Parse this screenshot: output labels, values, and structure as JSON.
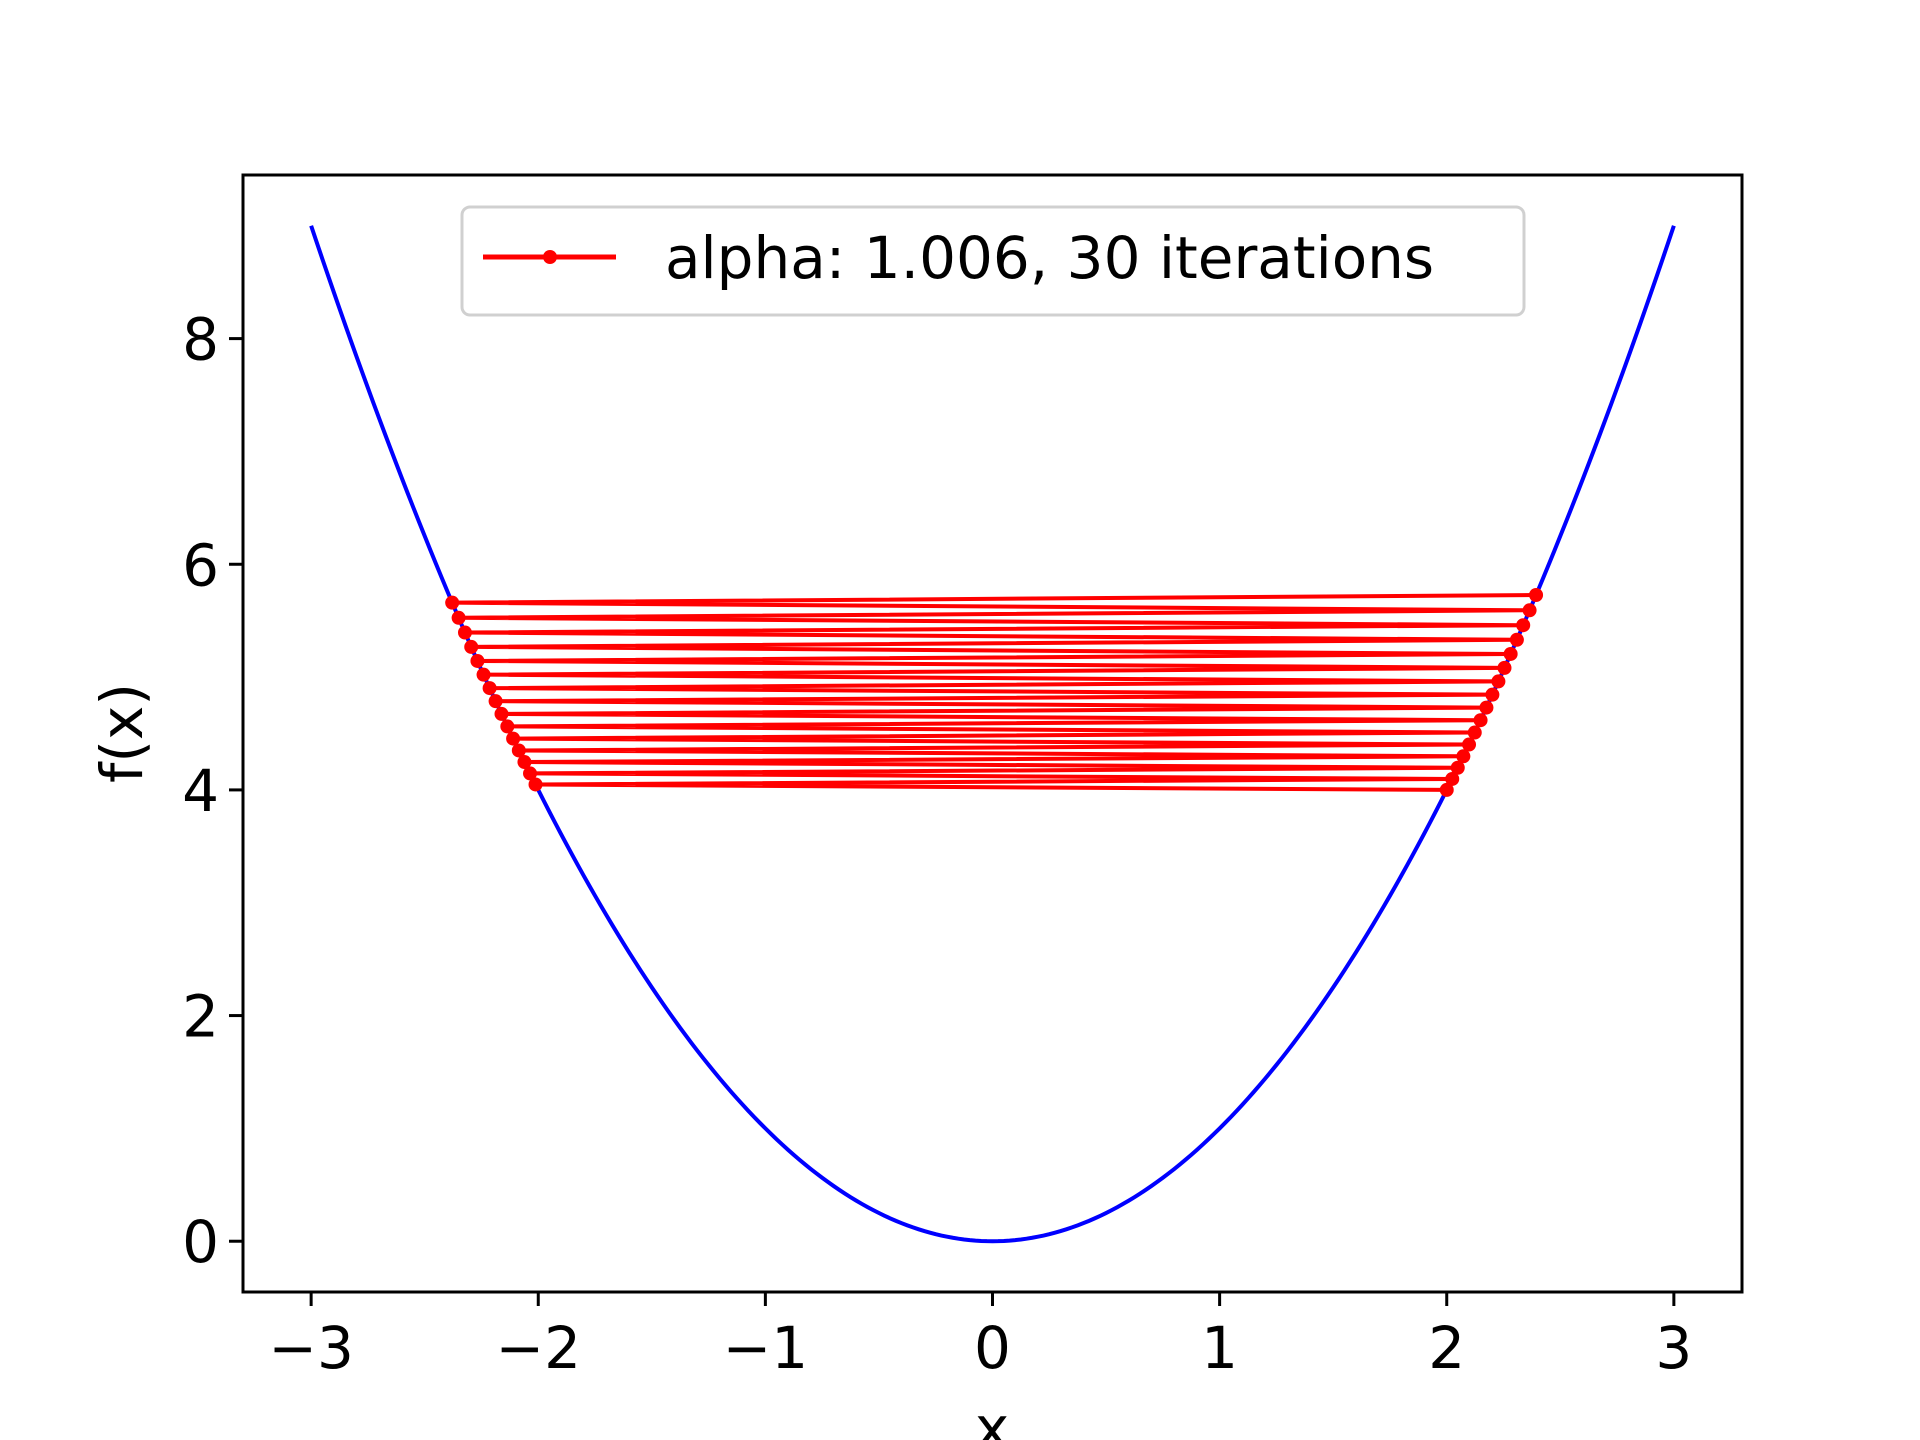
{
  "chart_data": {
    "type": "line",
    "xlabel": "x",
    "ylabel": "f(x)",
    "xlim": [
      -3.3,
      3.3
    ],
    "ylim": [
      -0.45,
      9.45
    ],
    "xticks": [
      -3,
      -2,
      -1,
      0,
      1,
      2,
      3
    ],
    "xtick_labels": [
      "−3",
      "−2",
      "−1",
      "0",
      "1",
      "2",
      "3"
    ],
    "yticks": [
      0,
      2,
      4,
      6,
      8
    ],
    "ytick_labels": [
      "0",
      "2",
      "4",
      "6",
      "8"
    ],
    "grid": false,
    "legend_position": "upper center",
    "colors": {
      "curve": "#0000ff",
      "iterates": "#ff0000",
      "frame": "#000000"
    },
    "series": [
      {
        "kind": "function",
        "function": "x^2",
        "x_range": [
          -3,
          3
        ],
        "color": "#0000ff"
      },
      {
        "name": "alpha: 1.006, 30 iterations",
        "kind": "iterates",
        "color": "#ff0000",
        "marker": "dot",
        "x": [
          2.0,
          -2.012,
          2.024144,
          -2.036289,
          2.048507,
          -2.060798,
          2.073163,
          -2.085602,
          2.098116,
          -2.110705,
          2.12337,
          -2.13611,
          2.148927,
          -2.16182,
          2.17479,
          -2.187839,
          2.200966,
          -2.214172,
          2.227457,
          -2.240822,
          2.254267,
          -2.267793,
          2.2814,
          -2.295088,
          2.308859,
          -2.322712,
          2.336648,
          -2.350668,
          2.364772,
          -2.378961,
          2.393235
        ]
      }
    ]
  },
  "legend": {
    "label": "alpha: 1.006, 30 iterations"
  }
}
